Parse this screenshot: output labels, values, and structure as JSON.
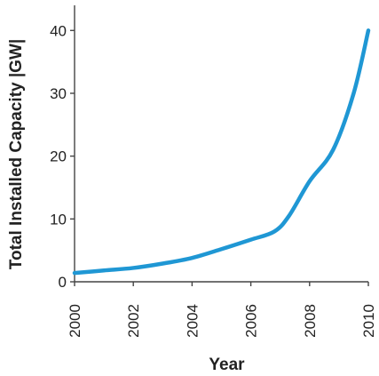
{
  "chart_data": {
    "type": "line",
    "title": "",
    "xlabel": "Year",
    "ylabel": "Total Installed Capacity  |GW|",
    "xlim": [
      2000,
      2010
    ],
    "ylim": [
      0,
      44
    ],
    "x_ticks": [
      2000,
      2002,
      2004,
      2006,
      2008,
      2010
    ],
    "y_ticks": [
      0,
      10,
      20,
      30,
      40
    ],
    "grid": false,
    "series": [
      {
        "color": "#1f97d4",
        "x": [
          2000,
          2001,
          2002,
          2003,
          2004,
          2005,
          2006,
          2006.8,
          2007.3,
          2008,
          2008.8,
          2009.5,
          2010
        ],
        "values": [
          1.4,
          1.8,
          2.2,
          2.9,
          3.8,
          5.2,
          6.7,
          8.0,
          10.5,
          16.0,
          21.0,
          30.0,
          40.0
        ]
      }
    ]
  }
}
